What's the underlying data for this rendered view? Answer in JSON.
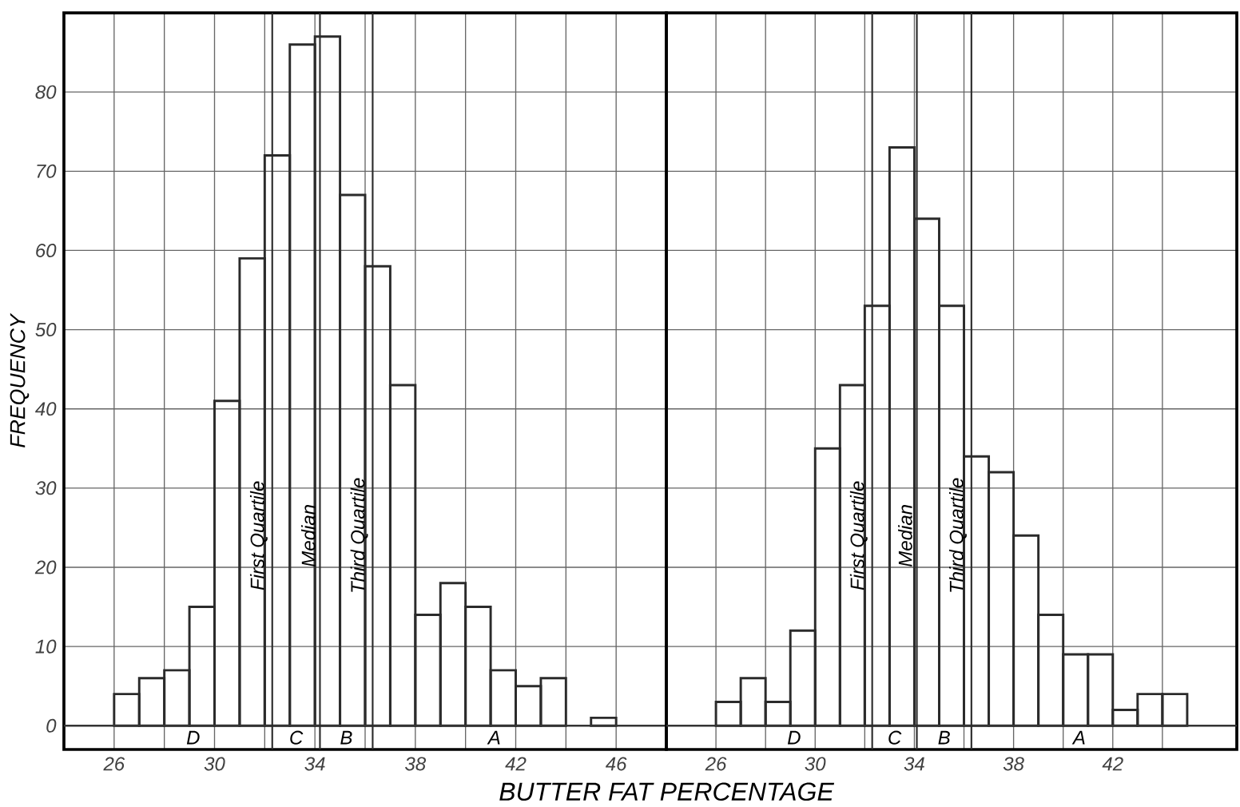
{
  "chart_data": [
    {
      "type": "histogram",
      "ylabel": "FREQUENCY",
      "xlabel": "BUTTER FAT PERCENTAGE",
      "color": "#2b2b2b",
      "bins": [
        26,
        27,
        28,
        29,
        30,
        31,
        32,
        33,
        34,
        35,
        36,
        37,
        38,
        39,
        40,
        41,
        42,
        43,
        44,
        45,
        46
      ],
      "values": [
        4,
        6,
        7,
        15,
        41,
        59,
        72,
        86,
        87,
        67,
        58,
        43,
        14,
        18,
        15,
        7,
        5,
        6,
        0,
        1
      ],
      "xlim": [
        24,
        48
      ],
      "ylim": [
        -3,
        90
      ],
      "xticks": [
        26,
        {
          "value": 28,
          "label": null
        },
        30,
        {
          "value": 32,
          "label": null
        },
        34,
        {
          "value": 36,
          "label": null
        },
        38,
        {
          "value": 40,
          "label": null
        },
        42,
        {
          "value": 44,
          "label": null
        },
        46
      ],
      "yticks": [
        0,
        10,
        20,
        30,
        40,
        50,
        60,
        70,
        80
      ],
      "grid": true,
      "ref_lines": [
        {
          "axis": "x",
          "value": 32.3,
          "label": "First Quartile",
          "color": "#2b2b2b"
        },
        {
          "axis": "x",
          "value": 34.2,
          "label": "Median",
          "color": "#2b2b2b"
        },
        {
          "axis": "x",
          "value": 36.3,
          "label": "Third Quartile",
          "color": "#2b2b2b"
        }
      ],
      "annotations": [
        "D",
        "C",
        "B",
        "A"
      ]
    },
    {
      "type": "histogram",
      "color": "#2b2b2b",
      "bins": [
        26,
        27,
        28,
        29,
        30,
        31,
        32,
        33,
        34,
        35,
        36,
        37,
        38,
        39,
        40,
        41,
        42,
        43,
        44,
        45
      ],
      "values": [
        3,
        6,
        3,
        12,
        35,
        43,
        53,
        73,
        64,
        53,
        34,
        32,
        24,
        14,
        9,
        9,
        2,
        4,
        4
      ],
      "xlim": [
        24,
        47
      ],
      "ylim": [
        -3,
        90
      ],
      "xticks": [
        26,
        {
          "value": 28,
          "label": null
        },
        30,
        {
          "value": 32,
          "label": null
        },
        34,
        {
          "value": 36,
          "label": null
        },
        38,
        {
          "value": 40,
          "label": null
        },
        42,
        {
          "value": 44,
          "label": null
        }
      ],
      "yticks": [
        0,
        10,
        20,
        30,
        40,
        50,
        60,
        70,
        80
      ],
      "grid": true,
      "tick_labels": "x",
      "ref_lines": [
        {
          "axis": "x",
          "value": 32.3,
          "label": "First Quartile",
          "color": "#2b2b2b"
        },
        {
          "axis": "x",
          "value": 34.1,
          "label": "Median",
          "color": "#2b2b2b"
        },
        {
          "axis": "x",
          "value": 36.3,
          "label": "Third Quartile",
          "color": "#2b2b2b"
        }
      ],
      "annotations": [
        "D",
        "C",
        "B",
        "A"
      ]
    }
  ]
}
